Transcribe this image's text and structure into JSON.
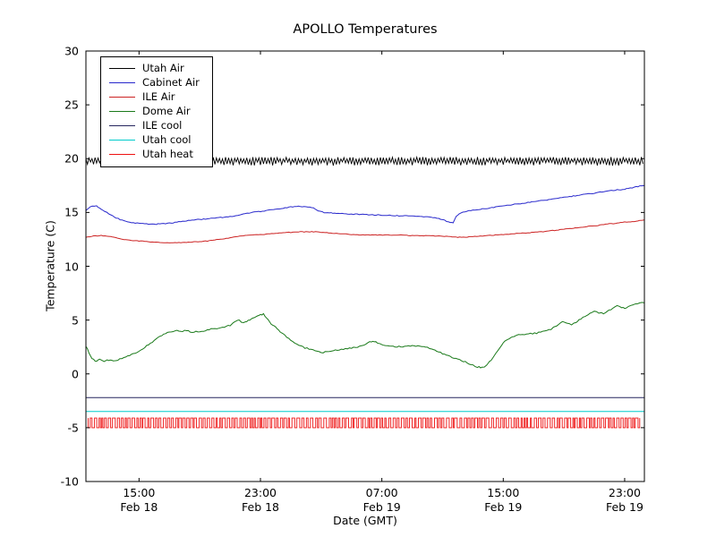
{
  "chart_data": {
    "type": "line",
    "title": "APOLLO Temperatures",
    "xlabel": "Date (GMT)",
    "ylabel": "Temperature (C)",
    "xlim": [
      11.5,
      48.3
    ],
    "ylim": [
      -10,
      30
    ],
    "x_unit": "hours since Feb 18 00:00 GMT",
    "grid": false,
    "legend_position": "upper-left",
    "yticks": [
      30,
      25,
      20,
      15,
      10,
      5,
      0,
      -5,
      -10
    ],
    "xticks": [
      {
        "hour": 15,
        "time": "15:00",
        "date": "Feb 18"
      },
      {
        "hour": 23,
        "time": "23:00",
        "date": "Feb 18"
      },
      {
        "hour": 31,
        "time": "07:00",
        "date": "Feb 19"
      },
      {
        "hour": 39,
        "time": "15:00",
        "date": "Feb 19"
      },
      {
        "hour": 47,
        "time": "23:00",
        "date": "Feb 19"
      }
    ],
    "series": [
      {
        "name": "Utah Air",
        "color": "#000000",
        "style": "noisy-band",
        "base": 19.85,
        "amp_up": 0.3,
        "amp_down": 0.5,
        "step_hours": 0.1
      },
      {
        "name": "Cabinet Air",
        "color": "#2828cc",
        "style": "line",
        "jitter": 0.04,
        "points": [
          [
            11.5,
            15.2
          ],
          [
            11.8,
            15.55
          ],
          [
            12.2,
            15.6
          ],
          [
            12.5,
            15.3
          ],
          [
            13,
            14.9
          ],
          [
            13.5,
            14.5
          ],
          [
            14,
            14.2
          ],
          [
            14.5,
            14.05
          ],
          [
            15,
            14.0
          ],
          [
            15.5,
            13.95
          ],
          [
            16,
            13.9
          ],
          [
            16.5,
            13.95
          ],
          [
            17,
            14.0
          ],
          [
            17.5,
            14.1
          ],
          [
            18,
            14.2
          ],
          [
            18.5,
            14.3
          ],
          [
            19,
            14.35
          ],
          [
            19.5,
            14.4
          ],
          [
            20,
            14.5
          ],
          [
            20.5,
            14.55
          ],
          [
            21,
            14.6
          ],
          [
            21.5,
            14.75
          ],
          [
            22,
            14.9
          ],
          [
            22.5,
            15.0
          ],
          [
            23,
            15.1
          ],
          [
            23.5,
            15.2
          ],
          [
            24,
            15.3
          ],
          [
            24.5,
            15.4
          ],
          [
            25,
            15.5
          ],
          [
            25.5,
            15.55
          ],
          [
            26,
            15.5
          ],
          [
            26.5,
            15.45
          ],
          [
            26.8,
            15.15
          ],
          [
            27.2,
            15.0
          ],
          [
            28,
            14.9
          ],
          [
            29,
            14.85
          ],
          [
            30,
            14.8
          ],
          [
            31,
            14.75
          ],
          [
            32,
            14.7
          ],
          [
            33,
            14.65
          ],
          [
            34,
            14.6
          ],
          [
            34.5,
            14.5
          ],
          [
            35,
            14.35
          ],
          [
            35.4,
            14.1
          ],
          [
            35.7,
            14.05
          ],
          [
            35.9,
            14.6
          ],
          [
            36.2,
            14.95
          ],
          [
            36.6,
            15.1
          ],
          [
            37,
            15.25
          ],
          [
            37.5,
            15.3
          ],
          [
            38,
            15.4
          ],
          [
            38.5,
            15.5
          ],
          [
            39,
            15.6
          ],
          [
            39.5,
            15.7
          ],
          [
            40,
            15.8
          ],
          [
            40.5,
            15.9
          ],
          [
            41,
            16.0
          ],
          [
            41.5,
            16.1
          ],
          [
            42,
            16.2
          ],
          [
            42.5,
            16.3
          ],
          [
            43,
            16.4
          ],
          [
            43.5,
            16.5
          ],
          [
            44,
            16.6
          ],
          [
            44.5,
            16.7
          ],
          [
            45,
            16.8
          ],
          [
            45.5,
            16.9
          ],
          [
            46,
            17.0
          ],
          [
            46.5,
            17.1
          ],
          [
            47,
            17.15
          ],
          [
            47.5,
            17.3
          ],
          [
            48,
            17.45
          ],
          [
            48.3,
            17.5
          ]
        ]
      },
      {
        "name": "ILE Air",
        "color": "#cc2222",
        "style": "line",
        "jitter": 0.03,
        "points": [
          [
            11.5,
            12.7
          ],
          [
            12,
            12.8
          ],
          [
            12.5,
            12.85
          ],
          [
            13,
            12.8
          ],
          [
            13.5,
            12.65
          ],
          [
            14,
            12.5
          ],
          [
            14.5,
            12.4
          ],
          [
            15,
            12.35
          ],
          [
            15.5,
            12.3
          ],
          [
            16,
            12.25
          ],
          [
            16.5,
            12.2
          ],
          [
            17.5,
            12.2
          ],
          [
            18.5,
            12.25
          ],
          [
            19,
            12.3
          ],
          [
            19.5,
            12.35
          ],
          [
            20,
            12.45
          ],
          [
            20.5,
            12.55
          ],
          [
            21,
            12.65
          ],
          [
            21.5,
            12.75
          ],
          [
            22,
            12.85
          ],
          [
            22.5,
            12.9
          ],
          [
            23,
            12.95
          ],
          [
            23.5,
            13.0
          ],
          [
            24,
            13.05
          ],
          [
            24.5,
            13.1
          ],
          [
            25,
            13.15
          ],
          [
            25.5,
            13.2
          ],
          [
            26.5,
            13.2
          ],
          [
            27,
            13.15
          ],
          [
            27.5,
            13.1
          ],
          [
            28,
            13.05
          ],
          [
            28.5,
            13.0
          ],
          [
            29,
            12.95
          ],
          [
            30,
            12.9
          ],
          [
            32,
            12.9
          ],
          [
            33,
            12.85
          ],
          [
            34,
            12.85
          ],
          [
            35,
            12.8
          ],
          [
            35.5,
            12.75
          ],
          [
            36,
            12.7
          ],
          [
            36.5,
            12.7
          ],
          [
            37,
            12.75
          ],
          [
            37.5,
            12.8
          ],
          [
            38,
            12.85
          ],
          [
            38.5,
            12.9
          ],
          [
            39,
            12.95
          ],
          [
            39.5,
            13.0
          ],
          [
            40,
            13.05
          ],
          [
            40.5,
            13.1
          ],
          [
            41,
            13.15
          ],
          [
            41.5,
            13.2
          ],
          [
            42,
            13.3
          ],
          [
            42.5,
            13.35
          ],
          [
            43,
            13.45
          ],
          [
            43.5,
            13.5
          ],
          [
            44,
            13.6
          ],
          [
            44.5,
            13.7
          ],
          [
            45,
            13.75
          ],
          [
            45.5,
            13.85
          ],
          [
            46,
            13.95
          ],
          [
            46.5,
            14.0
          ],
          [
            47,
            14.1
          ],
          [
            47.5,
            14.15
          ],
          [
            48,
            14.25
          ],
          [
            48.3,
            14.3
          ]
        ]
      },
      {
        "name": "Dome Air",
        "color": "#1a7a1a",
        "style": "line",
        "jitter": 0.07,
        "points": [
          [
            11.5,
            2.6
          ],
          [
            11.7,
            2.0
          ],
          [
            11.9,
            1.4
          ],
          [
            12.1,
            1.2
          ],
          [
            12.4,
            1.3
          ],
          [
            12.7,
            1.15
          ],
          [
            13,
            1.3
          ],
          [
            13.3,
            1.2
          ],
          [
            13.6,
            1.3
          ],
          [
            14,
            1.5
          ],
          [
            14.5,
            1.8
          ],
          [
            15,
            2.1
          ],
          [
            15.5,
            2.6
          ],
          [
            16,
            3.1
          ],
          [
            16.5,
            3.6
          ],
          [
            17,
            3.85
          ],
          [
            17.5,
            4.0
          ],
          [
            18,
            4.0
          ],
          [
            18.5,
            3.9
          ],
          [
            19,
            3.95
          ],
          [
            19.5,
            4.1
          ],
          [
            20,
            4.2
          ],
          [
            20.5,
            4.35
          ],
          [
            21,
            4.5
          ],
          [
            21.3,
            4.9
          ],
          [
            21.6,
            5.0
          ],
          [
            21.9,
            4.7
          ],
          [
            22.2,
            5.0
          ],
          [
            22.5,
            5.2
          ],
          [
            22.8,
            5.35
          ],
          [
            23,
            5.5
          ],
          [
            23.2,
            5.55
          ],
          [
            23.4,
            5.2
          ],
          [
            23.6,
            4.9
          ],
          [
            23.8,
            4.5
          ],
          [
            24,
            4.3
          ],
          [
            24.3,
            3.9
          ],
          [
            24.6,
            3.6
          ],
          [
            25,
            3.1
          ],
          [
            25.4,
            2.8
          ],
          [
            25.8,
            2.5
          ],
          [
            26.2,
            2.3
          ],
          [
            26.6,
            2.15
          ],
          [
            27,
            2.0
          ],
          [
            27.4,
            2.05
          ],
          [
            27.8,
            2.15
          ],
          [
            28.2,
            2.25
          ],
          [
            28.6,
            2.35
          ],
          [
            29,
            2.4
          ],
          [
            29.4,
            2.5
          ],
          [
            29.8,
            2.7
          ],
          [
            30.2,
            2.95
          ],
          [
            30.5,
            3.0
          ],
          [
            30.8,
            2.85
          ],
          [
            31.1,
            2.7
          ],
          [
            31.5,
            2.55
          ],
          [
            32,
            2.5
          ],
          [
            32.5,
            2.55
          ],
          [
            33,
            2.6
          ],
          [
            33.5,
            2.55
          ],
          [
            34,
            2.5
          ],
          [
            34.3,
            2.3
          ],
          [
            34.6,
            2.1
          ],
          [
            35,
            1.9
          ],
          [
            35.5,
            1.6
          ],
          [
            36,
            1.35
          ],
          [
            36.5,
            1.1
          ],
          [
            37,
            0.8
          ],
          [
            37.3,
            0.65
          ],
          [
            37.6,
            0.55
          ],
          [
            37.9,
            0.8
          ],
          [
            38.2,
            1.3
          ],
          [
            38.5,
            1.9
          ],
          [
            38.8,
            2.5
          ],
          [
            39.1,
            3.0
          ],
          [
            39.4,
            3.3
          ],
          [
            39.7,
            3.5
          ],
          [
            40,
            3.6
          ],
          [
            40.4,
            3.65
          ],
          [
            40.8,
            3.75
          ],
          [
            41.2,
            3.8
          ],
          [
            41.6,
            3.9
          ],
          [
            42,
            4.05
          ],
          [
            42.3,
            4.3
          ],
          [
            42.6,
            4.55
          ],
          [
            42.9,
            4.8
          ],
          [
            43.2,
            4.7
          ],
          [
            43.5,
            4.55
          ],
          [
            43.8,
            4.8
          ],
          [
            44.1,
            5.1
          ],
          [
            44.4,
            5.4
          ],
          [
            44.7,
            5.6
          ],
          [
            45,
            5.8
          ],
          [
            45.3,
            5.65
          ],
          [
            45.6,
            5.6
          ],
          [
            45.9,
            5.85
          ],
          [
            46.2,
            6.1
          ],
          [
            46.5,
            6.3
          ],
          [
            46.8,
            6.2
          ],
          [
            47.1,
            6.1
          ],
          [
            47.4,
            6.35
          ],
          [
            47.7,
            6.5
          ],
          [
            48,
            6.55
          ],
          [
            48.3,
            6.6
          ]
        ]
      },
      {
        "name": "ILE cool",
        "color": "#26265e",
        "style": "line",
        "jitter": 0,
        "points": [
          [
            11.5,
            -2.2
          ],
          [
            48.3,
            -2.2
          ]
        ]
      },
      {
        "name": "Utah cool",
        "color": "#00cccc",
        "style": "line",
        "jitter": 0,
        "points": [
          [
            11.5,
            -3.5
          ],
          [
            48.3,
            -3.5
          ]
        ]
      },
      {
        "name": "Utah heat",
        "color": "#ee1111",
        "style": "square-band",
        "high": -4.1,
        "low": -5.0,
        "step_hours": 0.18
      }
    ]
  }
}
